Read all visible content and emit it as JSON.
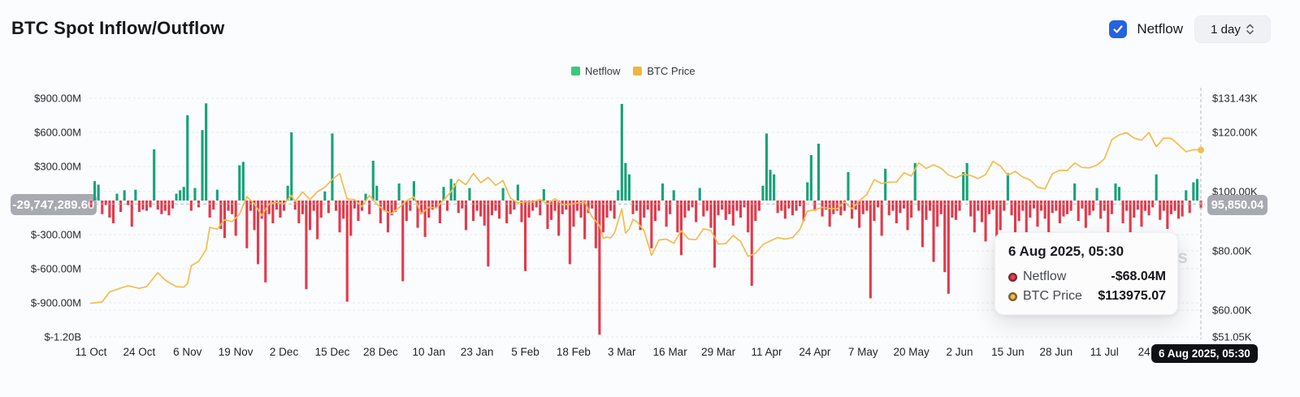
{
  "header": {
    "title": "BTC Spot Inflow/Outflow",
    "netflow_toggle_label": "Netflow",
    "netflow_toggle_checked": true,
    "interval_label": "1 day"
  },
  "legend": {
    "items": [
      {
        "label": "Netflow",
        "color": "#3dc77f"
      },
      {
        "label": "BTC Price",
        "color": "#efb63f"
      }
    ]
  },
  "colors": {
    "bar_positive": "#17a278",
    "bar_negative": "#e5394a",
    "price_line": "#f2bd50",
    "checkbox_blue": "#2563df",
    "crosshair_badge_bg": "#a7abb1",
    "date_pill_bg": "#101114"
  },
  "left_axis": {
    "unit": "USD (M = millions)",
    "ticks": [
      {
        "label": "$900.00M",
        "v": 900
      },
      {
        "label": "$600.00M",
        "v": 600
      },
      {
        "label": "$300.00M",
        "v": 300
      },
      {
        "label": "$-300.00M",
        "v": -300
      },
      {
        "label": "$-600.00M",
        "v": -600
      },
      {
        "label": "$-900.00M",
        "v": -900
      },
      {
        "label": "$-1.20B",
        "v": -1200
      }
    ],
    "crosshair_value": "-29,747,289.60"
  },
  "right_axis": {
    "unit": "USD (K = thousands)",
    "ticks": [
      {
        "label": "$131.43K",
        "v": 131.43
      },
      {
        "label": "$120.00K",
        "v": 120
      },
      {
        "label": "$100.00K",
        "v": 100
      },
      {
        "label": "$80.00K",
        "v": 80
      },
      {
        "label": "$60.00K",
        "v": 60
      },
      {
        "label": "$51.05K",
        "v": 51.05
      }
    ],
    "crosshair_value": "95,850.04"
  },
  "tooltip": {
    "title": "6 Aug 2025, 05:30",
    "rows": [
      {
        "label": "Netflow",
        "value": "-$68.04M",
        "color": "#e5404f"
      },
      {
        "label": "BTC Price",
        "value": "$113975.07",
        "color": "#eebb4d"
      }
    ]
  },
  "crosshair_date_label": "6 Aug 2025, 05:30",
  "watermark": "coinglass",
  "chart_data": {
    "type": "bar+line",
    "title": "BTC Spot Inflow/Outflow",
    "start_date": "11 Oct 2024",
    "end_date": "6 Aug 2025",
    "x_tick_labels": [
      "11 Oct",
      "24 Oct",
      "6 Nov",
      "19 Nov",
      "2 Dec",
      "15 Dec",
      "28 Dec",
      "10 Jan",
      "23 Jan",
      "5 Feb",
      "18 Feb",
      "3 Mar",
      "16 Mar",
      "29 Mar",
      "11 Apr",
      "24 Apr",
      "7 May",
      "20 May",
      "2 Jun",
      "15 Jun",
      "28 Jun",
      "11 Jul",
      "24 Jul"
    ],
    "x_tick_day_step": 13,
    "left_ylim_M": [
      -1200,
      980
    ],
    "right_ylim_K": [
      51.05,
      131.43
    ],
    "grid": "dashed-horizontal",
    "legend_position": "top-center",
    "series": [
      {
        "name": "Netflow",
        "type": "bar",
        "axis": "left",
        "unit": "USD millions, daily from 11 Oct 2024",
        "values": [
          -60,
          170,
          140,
          -120,
          -40,
          -150,
          -200,
          60,
          -100,
          90,
          -40,
          -230,
          95,
          -100,
          -80,
          -90,
          -60,
          450,
          -80,
          -120,
          -90,
          -130,
          -70,
          60,
          90,
          120,
          750,
          -90,
          110,
          -60,
          620,
          855,
          -150,
          -80,
          95,
          -250,
          -330,
          -90,
          -120,
          -310,
          310,
          340,
          -420,
          -90,
          -260,
          -560,
          -160,
          -720,
          -120,
          -200,
          -80,
          -150,
          -90,
          130,
          600,
          -80,
          -200,
          -120,
          -780,
          -260,
          -90,
          -340,
          -150,
          80,
          -110,
          590,
          -90,
          -280,
          -160,
          -890,
          -310,
          -70,
          -180,
          -90,
          60,
          -120,
          350,
          130,
          -200,
          -90,
          -280,
          -130,
          -100,
          150,
          -710,
          -180,
          -90,
          170,
          -240,
          -120,
          -320,
          -150,
          -80,
          -60,
          -200,
          120,
          -90,
          190,
          150,
          -110,
          -70,
          -260,
          110,
          -180,
          -90,
          -140,
          -220,
          -580,
          -130,
          -90,
          -160,
          110,
          -200,
          -120,
          -80,
          140,
          -190,
          -620,
          -150,
          -90,
          -60,
          -130,
          100,
          -250,
          -170,
          -90,
          -310,
          -120,
          -80,
          -560,
          -230,
          -90,
          -150,
          -340,
          -110,
          -70,
          -420,
          -1180,
          -280,
          -150,
          -90,
          -160,
          90,
          850,
          330,
          230,
          -120,
          -90,
          -260,
          -150,
          -80,
          -420,
          -180,
          -90,
          150,
          -230,
          -120,
          90,
          -280,
          -480,
          -150,
          -90,
          -60,
          -190,
          110,
          -140,
          -90,
          -240,
          -590,
          -130,
          -80,
          -170,
          -120,
          -220,
          -90,
          -150,
          -60,
          -280,
          -750,
          -180,
          -90,
          130,
          590,
          270,
          230,
          -110,
          -90,
          -160,
          -70,
          -130,
          -90,
          -50,
          -180,
          160,
          400,
          -90,
          500,
          -140,
          -80,
          -230,
          -120,
          -90,
          -130,
          -90,
          250,
          -160,
          -80,
          -240,
          -120,
          -90,
          -860,
          -180,
          -60,
          -310,
          280,
          -130,
          -90,
          -200,
          -110,
          -70,
          -260,
          -150,
          330,
          -90,
          -410,
          -170,
          -90,
          -540,
          -230,
          -120,
          -630,
          -820,
          -150,
          -170,
          -90,
          250,
          330,
          -140,
          -280,
          -90,
          -190,
          -360,
          -120,
          -80,
          -720,
          -260,
          -90,
          240,
          -130,
          -440,
          -180,
          -90,
          -310,
          -150,
          -70,
          -230,
          -90,
          -160,
          -380,
          -110,
          -90,
          -200,
          -140,
          -120,
          -90,
          150,
          -180,
          -70,
          -240,
          -130,
          -90,
          110,
          -160,
          -90,
          -280,
          -120,
          150,
          120,
          -200,
          -90,
          -340,
          -150,
          -80,
          -230,
          -90,
          -130,
          -60,
          230,
          -170,
          -90,
          -250,
          -120,
          -90,
          -160,
          -140,
          90,
          -110,
          160,
          190,
          -68.04
        ]
      },
      {
        "name": "BTC Price",
        "type": "line",
        "axis": "right",
        "unit": "USD thousands, [day_index, price]",
        "last_value": 113975.07,
        "points": [
          [
            0,
            62.4
          ],
          [
            3,
            62.8
          ],
          [
            5,
            66.2
          ],
          [
            8,
            67.5
          ],
          [
            10,
            68.3
          ],
          [
            13,
            67.4
          ],
          [
            15,
            68.0
          ],
          [
            18,
            72.7
          ],
          [
            20,
            70.2
          ],
          [
            21,
            69.4
          ],
          [
            23,
            68.0
          ],
          [
            25,
            67.8
          ],
          [
            26,
            69.0
          ],
          [
            27,
            75.0
          ],
          [
            29,
            76.5
          ],
          [
            31,
            80.4
          ],
          [
            32,
            88.0
          ],
          [
            34,
            87.3
          ],
          [
            36,
            90.5
          ],
          [
            38,
            89.9
          ],
          [
            40,
            92.3
          ],
          [
            42,
            98.3
          ],
          [
            44,
            95.9
          ],
          [
            46,
            91.9
          ],
          [
            48,
            95.9
          ],
          [
            50,
            96.4
          ],
          [
            52,
            95.8
          ],
          [
            54,
            98.7
          ],
          [
            55,
            96.6
          ],
          [
            57,
            99.9
          ],
          [
            59,
            97.3
          ],
          [
            61,
            100.0
          ],
          [
            63,
            101.4
          ],
          [
            65,
            104.1
          ],
          [
            67,
            106.1
          ],
          [
            69,
            97.5
          ],
          [
            71,
            97.3
          ],
          [
            73,
            94.9
          ],
          [
            75,
            98.7
          ],
          [
            77,
            95.8
          ],
          [
            79,
            93.6
          ],
          [
            81,
            92.6
          ],
          [
            83,
            94.6
          ],
          [
            85,
            96.9
          ],
          [
            87,
            98.2
          ],
          [
            89,
            92.5
          ],
          [
            91,
            94.7
          ],
          [
            93,
            94.5
          ],
          [
            95,
            97.1
          ],
          [
            97,
            100.0
          ],
          [
            99,
            104.1
          ],
          [
            101,
            102.3
          ],
          [
            103,
            106.1
          ],
          [
            105,
            103.0
          ],
          [
            107,
            104.8
          ],
          [
            109,
            102.1
          ],
          [
            111,
            103.7
          ],
          [
            113,
            97.8
          ],
          [
            115,
            96.2
          ],
          [
            117,
            96.6
          ],
          [
            119,
            96.5
          ],
          [
            121,
            97.4
          ],
          [
            123,
            95.8
          ],
          [
            125,
            97.6
          ],
          [
            127,
            95.6
          ],
          [
            129,
            95.7
          ],
          [
            131,
            96.1
          ],
          [
            133,
            96.6
          ],
          [
            135,
            91.4
          ],
          [
            137,
            88.6
          ],
          [
            138,
            84.3
          ],
          [
            139,
            84.7
          ],
          [
            140,
            84.4
          ],
          [
            141,
            86.0
          ],
          [
            143,
            94.2
          ],
          [
            144,
            86.0
          ],
          [
            145,
            87.3
          ],
          [
            146,
            90.6
          ],
          [
            147,
            89.9
          ],
          [
            149,
            86.8
          ],
          [
            151,
            78.5
          ],
          [
            153,
            83.7
          ],
          [
            155,
            84.0
          ],
          [
            157,
            82.6
          ],
          [
            159,
            86.8
          ],
          [
            161,
            84.0
          ],
          [
            163,
            83.8
          ],
          [
            165,
            87.5
          ],
          [
            167,
            86.9
          ],
          [
            169,
            82.3
          ],
          [
            171,
            82.5
          ],
          [
            173,
            85.2
          ],
          [
            175,
            83.2
          ],
          [
            177,
            78.2
          ],
          [
            179,
            79.2
          ],
          [
            181,
            82.1
          ],
          [
            183,
            83.4
          ],
          [
            185,
            84.5
          ],
          [
            187,
            84.0
          ],
          [
            189,
            84.5
          ],
          [
            191,
            87.3
          ],
          [
            193,
            93.4
          ],
          [
            195,
            93.8
          ],
          [
            197,
            94.7
          ],
          [
            199,
            94.3
          ],
          [
            201,
            94.2
          ],
          [
            203,
            96.5
          ],
          [
            205,
            94.2
          ],
          [
            207,
            96.9
          ],
          [
            209,
            99.0
          ],
          [
            211,
            104.0
          ],
          [
            213,
            102.7
          ],
          [
            215,
            103.2
          ],
          [
            217,
            103.2
          ],
          [
            219,
            106.4
          ],
          [
            221,
            105.2
          ],
          [
            223,
            109.7
          ],
          [
            225,
            107.8
          ],
          [
            227,
            109.0
          ],
          [
            229,
            107.8
          ],
          [
            231,
            105.6
          ],
          [
            233,
            104.6
          ],
          [
            235,
            105.8
          ],
          [
            237,
            105.4
          ],
          [
            239,
            104.4
          ],
          [
            241,
            105.7
          ],
          [
            243,
            110.2
          ],
          [
            245,
            108.6
          ],
          [
            247,
            105.5
          ],
          [
            249,
            106.8
          ],
          [
            251,
            104.9
          ],
          [
            253,
            103.9
          ],
          [
            255,
            101.5
          ],
          [
            257,
            100.9
          ],
          [
            259,
            106.0
          ],
          [
            261,
            107.2
          ],
          [
            263,
            107.1
          ],
          [
            265,
            109.6
          ],
          [
            267,
            108.1
          ],
          [
            269,
            108.0
          ],
          [
            271,
            108.9
          ],
          [
            273,
            111.0
          ],
          [
            275,
            117.5
          ],
          [
            277,
            119.1
          ],
          [
            279,
            119.8
          ],
          [
            281,
            118.0
          ],
          [
            283,
            117.3
          ],
          [
            285,
            119.9
          ],
          [
            287,
            115.1
          ],
          [
            289,
            118.0
          ],
          [
            291,
            117.9
          ],
          [
            293,
            115.8
          ],
          [
            295,
            113.4
          ],
          [
            297,
            114.1
          ],
          [
            299,
            113.975
          ]
        ]
      }
    ],
    "crosshair": {
      "x_label": "6 Aug 2025, 05:30",
      "left_value": -29747289.6,
      "right_value": 95850.04
    }
  }
}
